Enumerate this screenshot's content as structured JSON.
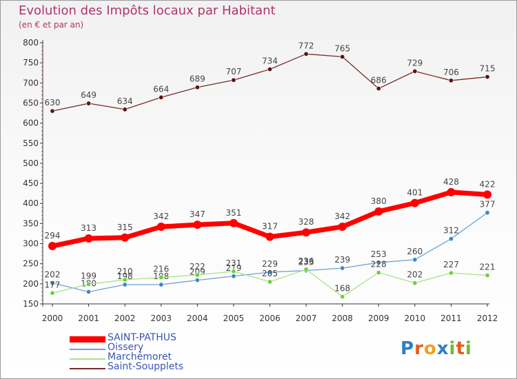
{
  "title": "Evolution des Impôts locaux par Habitant",
  "subtitle": "(en € et par an)",
  "logo_text": "Proxiti",
  "chart_data": {
    "type": "line",
    "title": "Evolution des Impôts locaux par Habitant",
    "subtitle": "(en € et par an)",
    "x": [
      "2000",
      "2001",
      "2002",
      "2003",
      "2004",
      "2005",
      "2006",
      "2007",
      "2008",
      "2009",
      "2010",
      "2011",
      "2012"
    ],
    "ylim": [
      150,
      800
    ],
    "yticks": [
      150,
      200,
      250,
      300,
      350,
      400,
      450,
      500,
      550,
      600,
      650,
      700,
      750,
      800
    ],
    "grid": false,
    "legend": "bottom-left",
    "series": [
      {
        "name": "SAINT-PATHUS",
        "values": [
          294,
          313,
          315,
          342,
          347,
          351,
          317,
          328,
          342,
          380,
          401,
          428,
          422
        ],
        "line_color": "#ff0000",
        "marker_color": "#ff0000",
        "label_color": "#444444",
        "thick": true
      },
      {
        "name": "Oissery",
        "values": [
          202,
          180,
          198,
          198,
          209,
          219,
          229,
          233,
          239,
          253,
          260,
          312,
          377
        ],
        "line_color": "#6aa1d2",
        "marker_color": "#3f86c5",
        "label_color": "#444444",
        "thick": false
      },
      {
        "name": "Marchémoret",
        "values": [
          177,
          199,
          210,
          216,
          222,
          231,
          205,
          236,
          168,
          228,
          202,
          227,
          221
        ],
        "line_color": "#a6e28a",
        "marker_color": "#6ecf3a",
        "label_color": "#444444",
        "thick": false
      },
      {
        "name": "Saint-Soupplets",
        "values": [
          630,
          649,
          634,
          664,
          689,
          707,
          734,
          772,
          765,
          686,
          729,
          706,
          715
        ],
        "line_color": "#7a2a2a",
        "marker_color": "#5a1414",
        "label_color": "#444444",
        "thick": false
      }
    ],
    "data_labels": {
      "SAINT-PATHUS": [
        "294",
        "313",
        "315",
        "342",
        "347",
        "351",
        "317",
        "328",
        "342",
        "380",
        "401",
        "428",
        "422"
      ],
      "Oissery": [
        "202",
        "180",
        "198",
        "198",
        "209",
        "219",
        "229",
        "233",
        "239",
        "253",
        "260",
        "312",
        "377"
      ],
      "Marchémoret": [
        "177",
        "199",
        "210",
        "216",
        "222",
        "231",
        "205",
        "236",
        "168",
        "228",
        "202",
        "227",
        "221"
      ],
      "Saint-Soupplets": [
        "630",
        "649",
        "634",
        "664",
        "689",
        "707",
        "734",
        "772",
        "765",
        "686",
        "729",
        "706",
        "715"
      ]
    }
  }
}
